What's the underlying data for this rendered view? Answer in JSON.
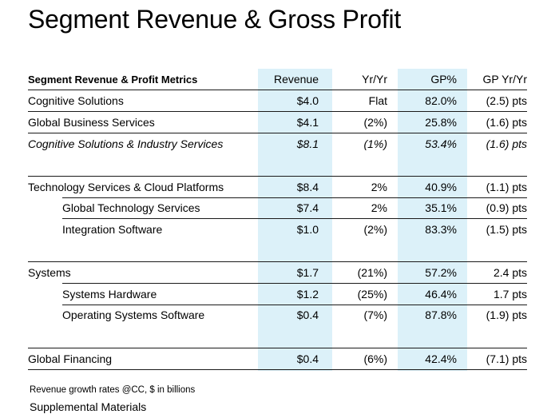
{
  "title": "Segment Revenue & Gross Profit",
  "columns": {
    "label": "Segment Revenue & Profit Metrics",
    "revenue": "Revenue",
    "yr_yr": "Yr/Yr",
    "gp_pct": "GP%",
    "gp_yr_yr": "GP Yr/Yr"
  },
  "rows": [
    {
      "label": "Cognitive Solutions",
      "revenue": "$4.0",
      "yr_yr": "Flat",
      "gp_pct": "82.0%",
      "gp_yr_yr": "(2.5) pts"
    },
    {
      "label": "Global Business Services",
      "revenue": "$4.1",
      "yr_yr": "(2%)",
      "gp_pct": "25.8%",
      "gp_yr_yr": "(1.6) pts"
    },
    {
      "label": "Cognitive Solutions & Industry Services",
      "revenue": "$8.1",
      "yr_yr": "(1%)",
      "gp_pct": "53.4%",
      "gp_yr_yr": "(1.6) pts"
    },
    {
      "label": "Technology Services & Cloud Platforms",
      "revenue": "$8.4",
      "yr_yr": "2%",
      "gp_pct": "40.9%",
      "gp_yr_yr": "(1.1) pts"
    },
    {
      "label": "Global Technology Services",
      "revenue": "$7.4",
      "yr_yr": "2%",
      "gp_pct": "35.1%",
      "gp_yr_yr": "(0.9) pts"
    },
    {
      "label": "Integration Software",
      "revenue": "$1.0",
      "yr_yr": "(2%)",
      "gp_pct": "83.3%",
      "gp_yr_yr": "(1.5) pts"
    },
    {
      "label": "Systems",
      "revenue": "$1.7",
      "yr_yr": "(21%)",
      "gp_pct": "57.2%",
      "gp_yr_yr": "2.4 pts"
    },
    {
      "label": "Systems Hardware",
      "revenue": "$1.2",
      "yr_yr": "(25%)",
      "gp_pct": "46.4%",
      "gp_yr_yr": "1.7 pts"
    },
    {
      "label": "Operating Systems Software",
      "revenue": "$0.4",
      "yr_yr": "(7%)",
      "gp_pct": "87.8%",
      "gp_yr_yr": "(1.9) pts"
    },
    {
      "label": "Global Financing",
      "revenue": "$0.4",
      "yr_yr": "(6%)",
      "gp_pct": "42.4%",
      "gp_yr_yr": "(7.1) pts"
    }
  ],
  "footnote": "Revenue growth rates @CC, $ in billions",
  "footer": "Supplemental Materials"
}
